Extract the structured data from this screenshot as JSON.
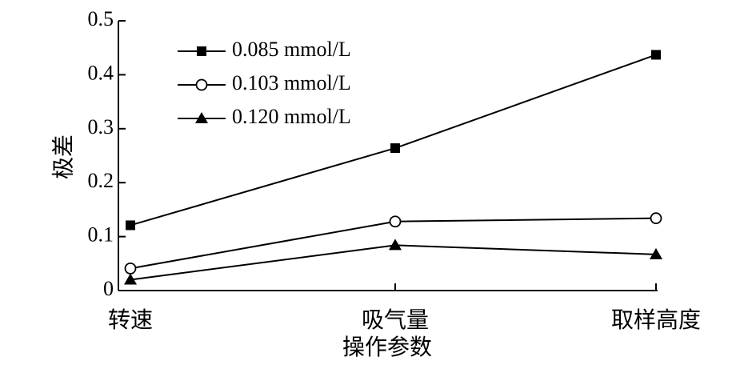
{
  "chart_data": {
    "type": "line",
    "categories": [
      "转速",
      "吸气量",
      "取样高度"
    ],
    "series": [
      {
        "name": "0.085 mmol/L",
        "marker": "filled-square",
        "values": [
          0.121,
          0.264,
          0.437
        ]
      },
      {
        "name": "0.103 mmol/L",
        "marker": "open-circle",
        "values": [
          0.041,
          0.128,
          0.134
        ]
      },
      {
        "name": "0.120 mmol/L",
        "marker": "filled-triangle",
        "values": [
          0.02,
          0.084,
          0.067
        ]
      }
    ],
    "title": "",
    "xlabel": "操作参数",
    "ylabel": "极差",
    "ylim": [
      0,
      0.5
    ],
    "yticks": [
      0,
      0.1,
      0.2,
      0.3,
      0.4,
      0.5
    ],
    "ytick_labels": [
      "0",
      "0.1",
      "0.2",
      "0.3",
      "0.4",
      "0.5"
    ],
    "grid": false,
    "legend_position": "top-left",
    "colors": {
      "line": "#000000",
      "marker_fill": "#000000",
      "open_marker_fill": "#ffffff"
    }
  }
}
